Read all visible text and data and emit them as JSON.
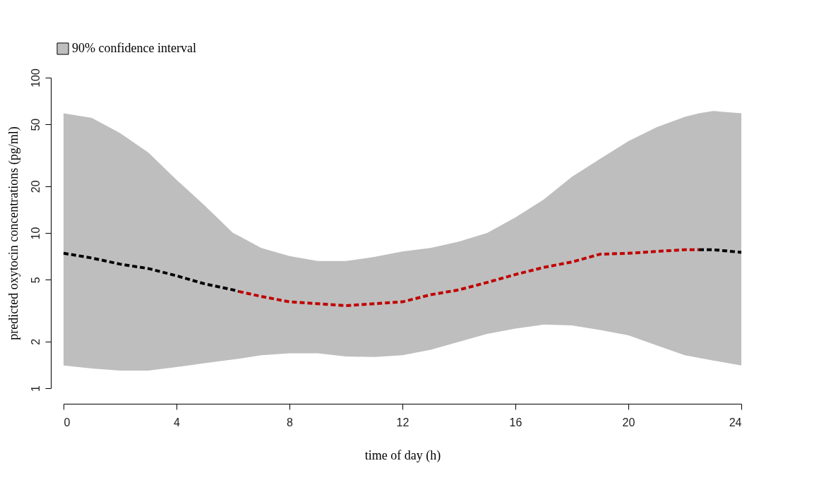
{
  "chart_data": {
    "type": "line",
    "xlabel": "time of day (h)",
    "ylabel": "predicted oxytocin concentrations (pg/ml)",
    "xlim": [
      0,
      24
    ],
    "xticks": [
      0,
      4,
      8,
      12,
      16,
      20,
      24
    ],
    "ylim": [
      1,
      100
    ],
    "yticks": [
      1,
      2,
      5,
      10,
      20,
      50,
      100
    ],
    "log": "y",
    "grid": false,
    "legend": "top left",
    "marker": "none",
    "line_style": "dashed",
    "series": [
      {
        "name": "90% confidence interval",
        "color": "#000000",
        "x": [
          0,
          1,
          2,
          3,
          4,
          5,
          6,
          6.2,
          7,
          8,
          9,
          10,
          11,
          12,
          13,
          14,
          15,
          16,
          17,
          18,
          19,
          20,
          21,
          22,
          22.5,
          23,
          24
        ],
        "values": [
          7.4,
          6.9,
          6.3,
          5.9,
          5.3,
          4.7,
          4.3,
          4.2,
          null,
          null,
          null,
          null,
          null,
          null,
          null,
          null,
          null,
          null,
          null,
          null,
          null,
          null,
          null,
          null,
          7.8,
          7.8,
          7.5
        ],
        "lower": [
          1.4,
          1.34,
          1.3,
          1.3,
          1.37,
          1.45,
          1.53,
          1.55,
          1.63,
          1.68,
          1.68,
          1.6,
          1.59,
          1.63,
          1.77,
          1.99,
          2.24,
          2.42,
          2.57,
          2.54,
          2.37,
          2.19,
          1.89,
          1.63,
          1.57,
          1.51,
          1.4
        ],
        "upper": [
          59,
          55,
          44,
          33,
          22,
          15,
          10,
          9.6,
          8.0,
          7.1,
          6.6,
          6.6,
          7.0,
          7.6,
          8.0,
          8.8,
          10,
          12.6,
          16.4,
          23,
          30,
          39,
          48,
          56,
          59,
          61,
          59
        ]
      },
      {
        "color": "#c00000",
        "x": [
          6.2,
          7,
          8,
          9,
          10,
          11,
          12,
          13,
          14,
          15,
          16,
          17,
          18,
          19,
          20,
          21,
          22,
          22.5
        ],
        "values": [
          4.2,
          3.9,
          3.6,
          3.5,
          3.4,
          3.5,
          3.6,
          4.0,
          4.3,
          4.8,
          5.4,
          6.0,
          6.5,
          7.3,
          7.4,
          7.6,
          7.8,
          7.8
        ]
      }
    ]
  }
}
